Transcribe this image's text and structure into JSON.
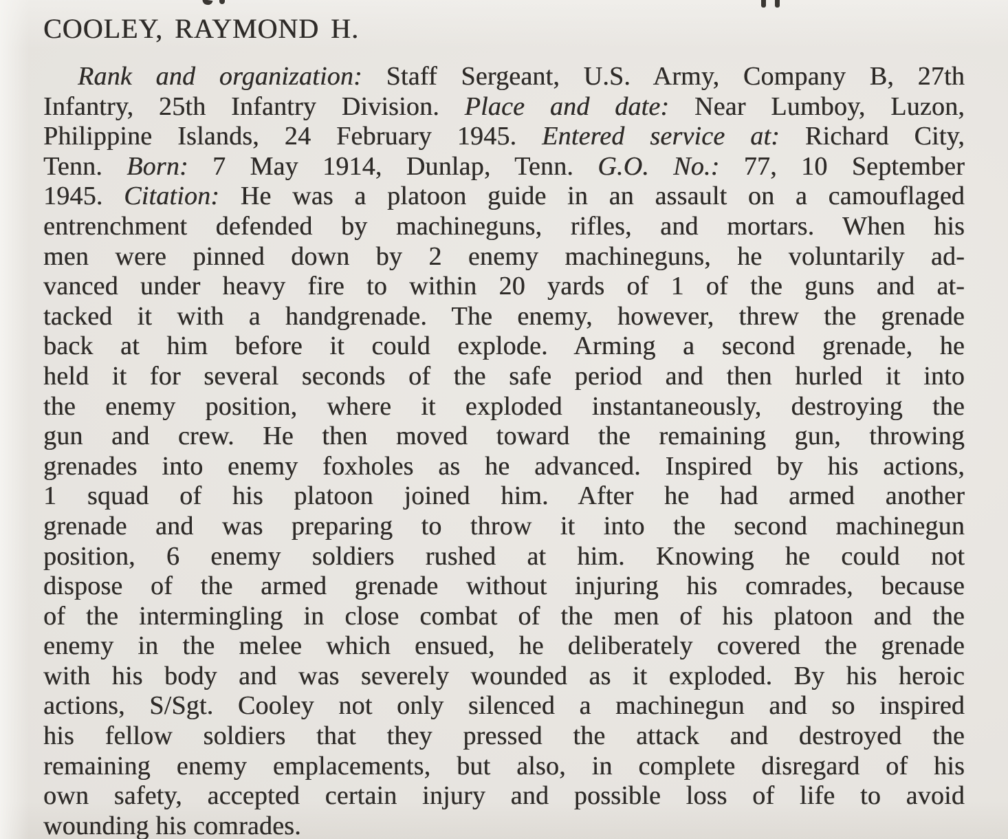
{
  "page": {
    "background_color": "#e9e6e1",
    "ink_color": "#2e2b28"
  },
  "heading": "COOLEY, RAYMOND H.",
  "citation": {
    "lines": [
      {
        "indent": true,
        "segments": [
          {
            "text": "Rank and organization: ",
            "italic": true
          },
          {
            "text": "Staff Sergeant, U.S. Army, Company B, 27th",
            "italic": false
          }
        ]
      },
      {
        "segments": [
          {
            "text": "Infantry, 25th Infantry Division. ",
            "italic": false
          },
          {
            "text": "Place and date: ",
            "italic": true
          },
          {
            "text": "Near Lumboy, Luzon,",
            "italic": false
          }
        ]
      },
      {
        "segments": [
          {
            "text": "Philippine Islands, 24 February 1945. ",
            "italic": false
          },
          {
            "text": "Entered service at: ",
            "italic": true
          },
          {
            "text": "Richard City,",
            "italic": false
          }
        ]
      },
      {
        "segments": [
          {
            "text": "Tenn. ",
            "italic": false
          },
          {
            "text": "Born: ",
            "italic": true
          },
          {
            "text": "7 May 1914, Dunlap, Tenn. ",
            "italic": false
          },
          {
            "text": "G.O. No.: ",
            "italic": true
          },
          {
            "text": "77, 10 September",
            "italic": false
          }
        ]
      },
      {
        "segments": [
          {
            "text": "1945. ",
            "italic": false
          },
          {
            "text": "Citation: ",
            "italic": true
          },
          {
            "text": "He was a platoon guide in an assault on a camouflaged",
            "italic": false
          }
        ]
      },
      {
        "segments": [
          {
            "text": "entrenchment defended by machineguns, rifles, and mortars. When his",
            "italic": false
          }
        ]
      },
      {
        "segments": [
          {
            "text": "men were pinned down by 2 enemy machineguns, he voluntarily ad-",
            "italic": false
          }
        ]
      },
      {
        "segments": [
          {
            "text": "vanced under heavy fire to within 20 yards of 1 of the guns and at-",
            "italic": false
          }
        ]
      },
      {
        "segments": [
          {
            "text": "tacked it with a handgrenade. The enemy, however, threw the grenade",
            "italic": false
          }
        ]
      },
      {
        "segments": [
          {
            "text": "back at him before it could explode. Arming a second grenade, he",
            "italic": false
          }
        ]
      },
      {
        "segments": [
          {
            "text": "held it for several seconds of the safe period and then hurled it into",
            "italic": false
          }
        ]
      },
      {
        "segments": [
          {
            "text": "the enemy position, where it exploded instantaneously, destroying the",
            "italic": false
          }
        ]
      },
      {
        "segments": [
          {
            "text": "gun and crew. He then moved toward the remaining gun, throwing",
            "italic": false
          }
        ]
      },
      {
        "segments": [
          {
            "text": "grenades into enemy foxholes as he advanced. Inspired by his actions,",
            "italic": false
          }
        ]
      },
      {
        "segments": [
          {
            "text": "1 squad of his platoon joined him. After he had armed another",
            "italic": false
          }
        ]
      },
      {
        "segments": [
          {
            "text": "grenade and was preparing to throw it into the second machinegun",
            "italic": false
          }
        ]
      },
      {
        "segments": [
          {
            "text": "position, 6 enemy soldiers rushed at him. Knowing he could not",
            "italic": false
          }
        ]
      },
      {
        "segments": [
          {
            "text": "dispose of the armed grenade without injuring his comrades, because",
            "italic": false
          }
        ]
      },
      {
        "segments": [
          {
            "text": "of the intermingling in close combat of the men of his platoon and the",
            "italic": false
          }
        ]
      },
      {
        "segments": [
          {
            "text": "enemy in the melee which ensued, he deliberately covered the grenade",
            "italic": false
          }
        ]
      },
      {
        "segments": [
          {
            "text": "with his body and was severely wounded as it exploded. By his heroic",
            "italic": false
          }
        ]
      },
      {
        "segments": [
          {
            "text": "actions, S/Sgt. Cooley not only silenced a machinegun and so inspired",
            "italic": false
          }
        ]
      },
      {
        "segments": [
          {
            "text": "his fellow soldiers that they pressed the attack and destroyed the",
            "italic": false
          }
        ]
      },
      {
        "segments": [
          {
            "text": "remaining enemy emplacements, but also, in complete disregard of his",
            "italic": false
          }
        ]
      },
      {
        "segments": [
          {
            "text": "own safety, accepted certain injury and possible loss of life to avoid",
            "italic": false
          }
        ]
      },
      {
        "last": true,
        "segments": [
          {
            "text": "wounding his comrades.",
            "italic": false
          }
        ]
      }
    ]
  }
}
